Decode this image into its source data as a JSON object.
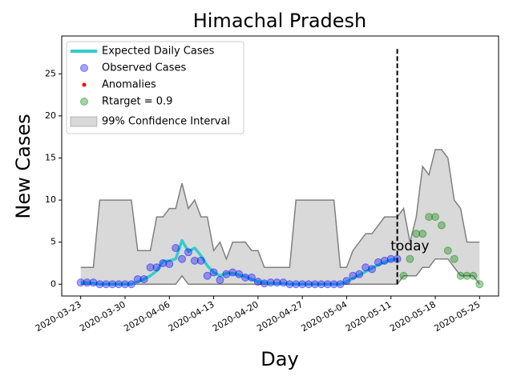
{
  "chart_data": {
    "type": "line",
    "title": "Himachal Pradesh",
    "x_label": "Day",
    "y_label": "New Cases",
    "xlim": [
      "2020-03-20",
      "2020-05-28"
    ],
    "xticks": [
      "2020-03-23",
      "2020-03-30",
      "2020-04-06",
      "2020-04-13",
      "2020-04-20",
      "2020-04-27",
      "2020-05-04",
      "2020-05-11",
      "2020-05-18",
      "2020-05-25"
    ],
    "ylim": [
      -1.4,
      29.5
    ],
    "yticks": [
      0,
      5,
      10,
      15,
      20,
      25
    ],
    "legend": "upper left",
    "series": [
      {
        "name": "Expected Daily Cases",
        "kind": "line",
        "color": "#33cccc",
        "x": [
          "2020-03-23",
          "2020-03-24",
          "2020-03-25",
          "2020-03-26",
          "2020-03-27",
          "2020-03-28",
          "2020-03-29",
          "2020-03-30",
          "2020-03-31",
          "2020-04-01",
          "2020-04-02",
          "2020-04-03",
          "2020-04-04",
          "2020-04-05",
          "2020-04-06",
          "2020-04-07",
          "2020-04-08",
          "2020-04-09",
          "2020-04-10",
          "2020-04-11",
          "2020-04-12",
          "2020-04-13",
          "2020-04-14",
          "2020-04-15",
          "2020-04-16",
          "2020-04-17",
          "2020-04-18",
          "2020-04-19",
          "2020-04-20",
          "2020-04-21",
          "2020-04-22",
          "2020-04-23",
          "2020-04-24",
          "2020-04-25",
          "2020-04-26",
          "2020-04-27",
          "2020-04-28",
          "2020-04-29",
          "2020-04-30",
          "2020-05-01",
          "2020-05-02",
          "2020-05-03",
          "2020-05-04",
          "2020-05-05",
          "2020-05-06",
          "2020-05-07",
          "2020-05-08",
          "2020-05-09",
          "2020-05-10",
          "2020-05-11",
          "2020-05-12"
        ],
        "values": [
          0.2,
          0.2,
          0.1,
          0,
          0,
          0,
          0,
          0,
          0,
          0.3,
          0.6,
          1,
          1.6,
          2.7,
          2.8,
          3,
          5.2,
          3.9,
          4.3,
          3.4,
          2.2,
          1.4,
          1,
          1.3,
          1.3,
          1.1,
          0.9,
          0.6,
          0.3,
          0.2,
          0.1,
          0.1,
          0.1,
          0,
          0,
          0,
          0,
          0,
          0,
          0,
          0,
          0,
          0.3,
          0.7,
          1.1,
          1.5,
          1.9,
          2.3,
          2.6,
          2.9,
          3
        ]
      },
      {
        "name": "Observed Cases",
        "kind": "points",
        "color": "#0000ff",
        "x": [
          "2020-03-23",
          "2020-03-24",
          "2020-03-25",
          "2020-03-26",
          "2020-03-27",
          "2020-03-28",
          "2020-03-29",
          "2020-03-30",
          "2020-03-31",
          "2020-04-01",
          "2020-04-02",
          "2020-04-03",
          "2020-04-04",
          "2020-04-05",
          "2020-04-06",
          "2020-04-07",
          "2020-04-08",
          "2020-04-09",
          "2020-04-10",
          "2020-04-11",
          "2020-04-12",
          "2020-04-13",
          "2020-04-14",
          "2020-04-15",
          "2020-04-16",
          "2020-04-17",
          "2020-04-18",
          "2020-04-19",
          "2020-04-20",
          "2020-04-21",
          "2020-04-22",
          "2020-04-23",
          "2020-04-24",
          "2020-04-25",
          "2020-04-26",
          "2020-04-27",
          "2020-04-28",
          "2020-04-29",
          "2020-04-30",
          "2020-05-01",
          "2020-05-02",
          "2020-05-03",
          "2020-05-04",
          "2020-05-05",
          "2020-05-06",
          "2020-05-07",
          "2020-05-08",
          "2020-05-09",
          "2020-05-10",
          "2020-05-11",
          "2020-05-12"
        ],
        "values": [
          0.2,
          0.2,
          0.2,
          0,
          0,
          0,
          0,
          0,
          0,
          0.6,
          0.6,
          2,
          2,
          2.5,
          2.4,
          4.3,
          3,
          3.8,
          2.8,
          2.8,
          1,
          1.4,
          0.5,
          1.2,
          1.4,
          1.2,
          0.8,
          0.8,
          0.3,
          0.1,
          0.2,
          0.2,
          0.2,
          0,
          0,
          0,
          0,
          0,
          0,
          0,
          0,
          0,
          0.4,
          1,
          1.2,
          2,
          1.8,
          2.6,
          2.8,
          3,
          3
        ]
      },
      {
        "name": "Anomalies",
        "kind": "dots",
        "color": "#ff0000",
        "x": [],
        "values": []
      },
      {
        "name": "Rtarget = 0.9",
        "kind": "points",
        "color": "#008000",
        "x": [
          "2020-05-13",
          "2020-05-14",
          "2020-05-15",
          "2020-05-16",
          "2020-05-17",
          "2020-05-18",
          "2020-05-19",
          "2020-05-20",
          "2020-05-21",
          "2020-05-22",
          "2020-05-23",
          "2020-05-24",
          "2020-05-25"
        ],
        "values": [
          1,
          3,
          6,
          6,
          8,
          8,
          7,
          4,
          3,
          1,
          1,
          1,
          0
        ]
      },
      {
        "name": "99% Confidence Interval",
        "kind": "band",
        "color": "#808080",
        "x": [
          "2020-03-23",
          "2020-03-24",
          "2020-03-25",
          "2020-03-26",
          "2020-03-27",
          "2020-03-28",
          "2020-03-29",
          "2020-03-30",
          "2020-03-31",
          "2020-04-01",
          "2020-04-02",
          "2020-04-03",
          "2020-04-04",
          "2020-04-05",
          "2020-04-06",
          "2020-04-07",
          "2020-04-08",
          "2020-04-09",
          "2020-04-10",
          "2020-04-11",
          "2020-04-12",
          "2020-04-13",
          "2020-04-14",
          "2020-04-15",
          "2020-04-16",
          "2020-04-17",
          "2020-04-18",
          "2020-04-19",
          "2020-04-20",
          "2020-04-21",
          "2020-04-22",
          "2020-04-23",
          "2020-04-24",
          "2020-04-25",
          "2020-04-26",
          "2020-04-27",
          "2020-04-28",
          "2020-04-29",
          "2020-04-30",
          "2020-05-01",
          "2020-05-02",
          "2020-05-03",
          "2020-05-04",
          "2020-05-05",
          "2020-05-06",
          "2020-05-07",
          "2020-05-08",
          "2020-05-09",
          "2020-05-10",
          "2020-05-11",
          "2020-05-12",
          "2020-05-13",
          "2020-05-14",
          "2020-05-15",
          "2020-05-16",
          "2020-05-17",
          "2020-05-18",
          "2020-05-19",
          "2020-05-20",
          "2020-05-21",
          "2020-05-22",
          "2020-05-23",
          "2020-05-24",
          "2020-05-25"
        ],
        "lower": [
          0,
          0,
          0,
          0,
          0,
          0,
          0,
          0,
          0,
          0,
          0,
          0,
          0,
          0,
          0,
          0,
          1,
          0,
          0,
          0,
          0,
          0,
          0,
          0,
          0,
          0,
          0,
          0,
          0,
          0,
          0,
          0,
          0,
          0,
          0,
          0,
          0,
          0,
          0,
          0,
          0,
          0,
          0,
          0,
          0,
          0,
          0,
          0,
          0,
          0,
          0,
          1,
          1,
          1,
          2,
          2,
          3,
          3,
          3,
          2,
          1,
          1,
          1,
          0
        ],
        "upper": [
          2,
          2,
          2,
          10,
          10,
          10,
          10,
          10,
          10,
          4,
          4,
          4,
          8,
          8,
          9,
          9,
          12,
          9,
          10,
          8,
          8,
          4,
          5,
          3,
          5,
          5,
          5,
          4,
          4,
          2,
          2,
          2,
          2,
          2,
          10,
          10,
          10,
          10,
          10,
          10,
          10,
          2,
          2,
          4,
          5,
          6,
          6,
          7,
          8,
          8,
          8,
          9,
          5,
          8,
          14,
          13,
          16,
          16,
          15,
          10,
          9,
          5,
          5,
          5
        ]
      }
    ],
    "vline": {
      "x": "2020-05-12",
      "ymin": 0,
      "ymax": 28
    },
    "annotations": [
      {
        "text": "today",
        "x": "2020-05-14",
        "y": 4.5
      }
    ]
  }
}
